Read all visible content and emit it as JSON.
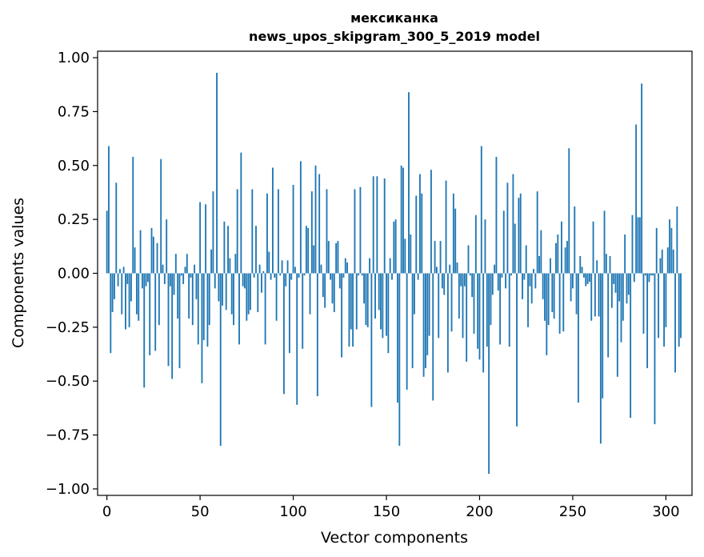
{
  "chart_data": {
    "type": "bar",
    "title": "мексиканка",
    "subtitle": "news_upos_skipgram_300_5_2019 model",
    "xlabel": "Vector components",
    "ylabel": "Components values",
    "xlim": [
      -5,
      314
    ],
    "ylim": [
      -1.03,
      1.03
    ],
    "x_ticks": [
      0,
      50,
      100,
      150,
      200,
      250,
      300
    ],
    "x_tick_labels": [
      "0",
      "50",
      "100",
      "150",
      "200",
      "250",
      "300"
    ],
    "y_ticks": [
      1.0,
      0.75,
      0.5,
      0.25,
      0.0,
      -0.25,
      -0.5,
      -0.75,
      -1.0
    ],
    "y_tick_labels": [
      "1.00",
      "0.75",
      "0.50",
      "0.25",
      "0.00",
      "−0.25",
      "−0.50",
      "−0.75",
      "−1.00"
    ],
    "bar_color": "#1f77b4",
    "grid": false,
    "values": [
      0.29,
      0.59,
      -0.37,
      -0.18,
      -0.12,
      0.42,
      -0.06,
      0.02,
      -0.19,
      0.03,
      -0.26,
      -0.05,
      -0.25,
      -0.13,
      0.54,
      0.12,
      -0.19,
      -0.22,
      0.2,
      -0.07,
      -0.53,
      -0.06,
      -0.04,
      -0.38,
      0.21,
      0.17,
      -0.36,
      0.14,
      -0.24,
      0.53,
      0.04,
      -0.05,
      0.25,
      -0.43,
      -0.06,
      -0.49,
      -0.1,
      0.09,
      -0.21,
      -0.44,
      -0.01,
      -0.05,
      0.03,
      0.09,
      -0.21,
      -0.02,
      -0.24,
      0.04,
      -0.12,
      -0.33,
      0.33,
      -0.51,
      -0.31,
      0.32,
      -0.34,
      -0.24,
      0.11,
      0.38,
      -0.07,
      0.93,
      -0.13,
      -0.8,
      -0.15,
      0.24,
      -0.17,
      0.22,
      0.07,
      -0.19,
      -0.24,
      0.09,
      0.39,
      -0.33,
      0.56,
      -0.06,
      -0.07,
      -0.22,
      -0.19,
      -0.17,
      0.39,
      -0.02,
      0.22,
      -0.18,
      0.04,
      -0.09,
      0.01,
      -0.33,
      0.37,
      0.1,
      -0.03,
      0.49,
      -0.02,
      -0.22,
      0.39,
      -0.01,
      0.06,
      -0.56,
      -0.06,
      0.06,
      -0.37,
      -0.03,
      0.41,
      0.03,
      -0.61,
      -0.02,
      0.52,
      -0.35,
      -0.01,
      0.22,
      0.21,
      -0.19,
      0.38,
      0.13,
      0.5,
      -0.57,
      0.46,
      0.04,
      -0.11,
      -0.16,
      0.39,
      0.15,
      -0.03,
      -0.14,
      -0.18,
      0.14,
      0.15,
      -0.07,
      -0.39,
      -0.02,
      0.07,
      0.05,
      -0.34,
      -0.26,
      -0.34,
      0.39,
      -0.26,
      -0.01,
      0.4,
      -0.01,
      -0.14,
      -0.24,
      -0.25,
      0.07,
      -0.62,
      0.45,
      -0.21,
      0.45,
      -0.17,
      -0.26,
      -0.3,
      0.44,
      -0.29,
      -0.37,
      0.07,
      -0.03,
      0.24,
      0.25,
      -0.6,
      -0.8,
      0.5,
      0.49,
      0.16,
      -0.54,
      0.84,
      0.18,
      -0.44,
      -0.19,
      0.36,
      -0.03,
      0.46,
      0.37,
      -0.48,
      -0.44,
      -0.38,
      -0.29,
      0.48,
      -0.59,
      0.15,
      0.03,
      -0.3,
      0.15,
      -0.07,
      -0.1,
      0.43,
      -0.46,
      0.04,
      -0.27,
      0.37,
      0.3,
      0.05,
      -0.21,
      -0.06,
      -0.3,
      -0.06,
      -0.41,
      0.13,
      -0.01,
      -0.11,
      -0.28,
      0.27,
      -0.35,
      -0.4,
      0.59,
      -0.46,
      0.25,
      -0.34,
      -0.93,
      -0.24,
      -0.1,
      0.04,
      0.54,
      -0.08,
      -0.33,
      -0.02,
      0.29,
      -0.07,
      0.42,
      -0.34,
      -0.01,
      0.46,
      0.23,
      -0.71,
      0.35,
      0.37,
      -0.12,
      -0.03,
      0.13,
      -0.25,
      -0.06,
      -0.14,
      0.02,
      -0.07,
      0.38,
      0.08,
      0.2,
      -0.12,
      -0.22,
      -0.38,
      -0.24,
      0.07,
      -0.18,
      -0.21,
      0.14,
      0.18,
      -0.28,
      0.24,
      -0.27,
      0.12,
      0.15,
      0.58,
      -0.13,
      -0.07,
      0.31,
      -0.19,
      -0.6,
      0.08,
      0.03,
      -0.02,
      -0.06,
      -0.05,
      -0.04,
      -0.22,
      0.24,
      -0.2,
      0.06,
      -0.2,
      -0.79,
      -0.58,
      0.29,
      0.09,
      -0.39,
      0.08,
      -0.16,
      -0.05,
      -0.09,
      -0.48,
      -0.13,
      -0.32,
      -0.22,
      0.18,
      -0.14,
      -0.1,
      -0.67,
      0.27,
      -0.04,
      0.69,
      0.26,
      0.26,
      0.88,
      -0.28,
      -0.01,
      -0.44,
      -0.04,
      -0.01,
      -0.01,
      -0.7,
      0.21,
      -0.3,
      0.07,
      0.11,
      -0.34,
      -0.25,
      0.12,
      0.25,
      0.21,
      0.11,
      -0.46,
      0.31,
      -0.34,
      -0.3
    ]
  }
}
